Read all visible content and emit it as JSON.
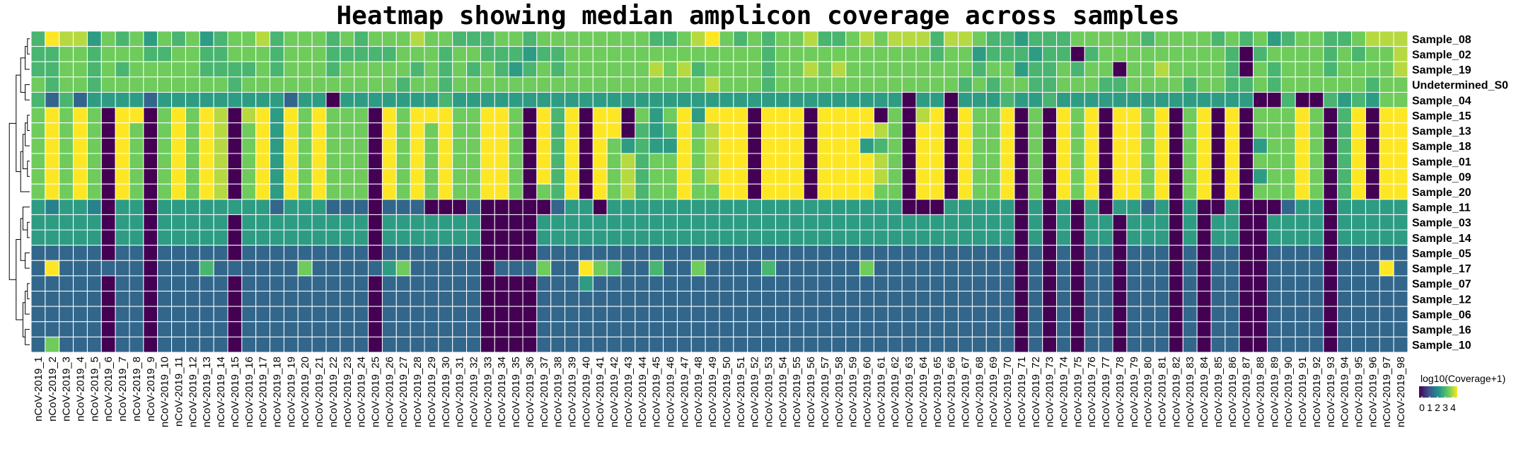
{
  "chart_data": {
    "type": "heatmap",
    "title": "Heatmap showing median amplicon coverage across samples",
    "colorscale": "viridis",
    "colors": [
      "#440154",
      "#3b528b",
      "#21908c",
      "#5dc863",
      "#fde725"
    ],
    "zlim": [
      0,
      4.5
    ],
    "legend": {
      "title": "log10(Coverage+1)",
      "ticks": [
        "0",
        "1",
        "2",
        "3",
        "4"
      ],
      "placement": "right-bottom"
    },
    "rows": [
      "Sample_08",
      "Sample_02",
      "Sample_19",
      "Undetermined_S0",
      "Sample_04",
      "Sample_15",
      "Sample_13",
      "Sample_18",
      "Sample_01",
      "Sample_09",
      "Sample_20",
      "Sample_11",
      "Sample_03",
      "Sample_14",
      "Sample_05",
      "Sample_17",
      "Sample_07",
      "Sample_12",
      "Sample_06",
      "Sample_16",
      "Sample_10"
    ],
    "columns": [
      "nCoV-2019_1",
      "nCoV-2019_2",
      "nCoV-2019_3",
      "nCoV-2019_4",
      "nCoV-2019_5",
      "nCoV-2019_6",
      "nCoV-2019_7",
      "nCoV-2019_8",
      "nCoV-2019_9",
      "nCoV-2019_10",
      "nCoV-2019_11",
      "nCoV-2019_12",
      "nCoV-2019_13",
      "nCoV-2019_14",
      "nCoV-2019_15",
      "nCoV-2019_16",
      "nCoV-2019_17",
      "nCoV-2019_18",
      "nCoV-2019_19",
      "nCoV-2019_20",
      "nCoV-2019_21",
      "nCoV-2019_22",
      "nCoV-2019_23",
      "nCoV-2019_24",
      "nCoV-2019_25",
      "nCoV-2019_26",
      "nCoV-2019_27",
      "nCoV-2019_28",
      "nCoV-2019_29",
      "nCoV-2019_30",
      "nCoV-2019_31",
      "nCoV-2019_32",
      "nCoV-2019_33",
      "nCoV-2019_34",
      "nCoV-2019_35",
      "nCoV-2019_36",
      "nCoV-2019_37",
      "nCoV-2019_38",
      "nCoV-2019_39",
      "nCoV-2019_40",
      "nCoV-2019_41",
      "nCoV-2019_42",
      "nCoV-2019_43",
      "nCoV-2019_44",
      "nCoV-2019_45",
      "nCoV-2019_46",
      "nCoV-2019_47",
      "nCoV-2019_48",
      "nCoV-2019_49",
      "nCoV-2019_50",
      "nCoV-2019_51",
      "nCoV-2019_52",
      "nCoV-2019_53",
      "nCoV-2019_54",
      "nCoV-2019_55",
      "nCoV-2019_56",
      "nCoV-2019_57",
      "nCoV-2019_58",
      "nCoV-2019_59",
      "nCoV-2019_60",
      "nCoV-2019_61",
      "nCoV-2019_62",
      "nCoV-2019_63",
      "nCoV-2019_64",
      "nCoV-2019_65",
      "nCoV-2019_66",
      "nCoV-2019_67",
      "nCoV-2019_68",
      "nCoV-2019_69",
      "nCoV-2019_70",
      "nCoV-2019_71",
      "nCoV-2019_72",
      "nCoV-2019_73",
      "nCoV-2019_74",
      "nCoV-2019_75",
      "nCoV-2019_76",
      "nCoV-2019_77",
      "nCoV-2019_78",
      "nCoV-2019_79",
      "nCoV-2019_80",
      "nCoV-2019_81",
      "nCoV-2019_82",
      "nCoV-2019_83",
      "nCoV-2019_84",
      "nCoV-2019_85",
      "nCoV-2019_86",
      "nCoV-2019_87",
      "nCoV-2019_88",
      "nCoV-2019_89",
      "nCoV-2019_90",
      "nCoV-2019_91",
      "nCoV-2019_92",
      "nCoV-2019_93",
      "nCoV-2019_94",
      "nCoV-2019_95",
      "nCoV-2019_96",
      "nCoV-2019_97",
      "nCoV-2019_98"
    ],
    "values_encoding": "one string per row; one digit per column; digit d means value d*0.5 (0=0.0 ... 9=4.5)",
    "values": [
      "6988576757675677867776767778776667767777777766789767677866787888688766566677777677776767567766788866",
      "6677677766776677767776666677767766656677777777777777677777777777677566656606777777777606777767677844",
      "6677676777776666767776777776767676567677777787867777677878777777777677566767707787777607677767777877",
      "7677677777777767777777777767767777777777777777778777677777777777776767766777667777677667677777767766",
      "6363555535555555553550555555565555555555555555555555555555555505505556556555555555555550060065657777",
      "7979709907979808959797770979997799709690990757959990999099990708909779070979099790790907779706909990",
      "7979709707979807959797770979797799709690990656978990999099998709909779070979099790790907779706909990",
      "7979709707979807959797770979797799709690975655978990999099956709909779070979099790790905779706909990",
      "7979709707979807959797770979797799709690978677978990999099998709909779070979099790790907779706909990",
      "7979709707979807959797770979797799709690978677978990999099998709909779070979099790790905779706909990",
      "7979709707979807959797770979797799707690978677977990999099997709909779070979099790790907779706909990",
      "5455405505555555535553330333000300000355055555555555555555555500055555050505055350500500035505555505",
      "5555505505555505555555550555555500005555555555555555555555555555555555050505505550505500555505555505",
      "5555505505555505555555550555555500005555555555555555555555555555555555050505505550505500555505555505",
      "3333303303333303333333330333333300003333333333333333333333333333333333030303303330303300333303333303",
      "3933333303336333333733333573333303337339763363373333633333373333333333030303303330303300333303339303",
      "3333303303333303333333330333333300003335333333333333333333333333333333030303303330303300333303333303",
      "3333303303333303333333330333333300003333333333333333333333333333333333030303303330303300333303333303",
      "3333303303333303333333330333333300003333333333333333333333333333333333030303303330303300333303333303",
      "3333303303333303333333330333333300003333333333333333333333333333333333030303303330303300333303333303",
      "3733303303333303333333330333333300003333333333333333333333333333333333030303303330303300333303333303"
    ]
  }
}
